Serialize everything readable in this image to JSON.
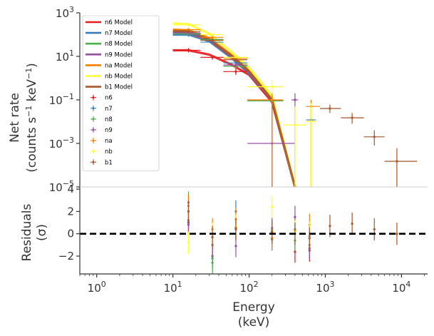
{
  "chart_data": [
    {
      "type": "line",
      "panel": "spectrum",
      "xscale": "log",
      "yscale": "log",
      "xlim": [
        0.6,
        22000
      ],
      "ylim": [
        1e-05,
        1000
      ],
      "ylabel_line1": "Net rate",
      "ylabel_line2": "(counts s",
      "ylabel_line2_sup": "−1",
      "ylabel_line2_mid": " keV",
      "ylabel_line2_sup2": "−1",
      "ylabel_line2_end": ")",
      "yticks": [
        {
          "base": "10",
          "exp": "3",
          "value": 1000
        },
        {
          "base": "10",
          "exp": "1",
          "value": 10
        },
        {
          "base": "10",
          "exp": "−1",
          "value": 0.1
        },
        {
          "base": "10",
          "exp": "−3",
          "value": 0.001
        },
        {
          "base": "10",
          "exp": "−5",
          "value": 1e-05
        }
      ],
      "legend_position": "upper-left",
      "models": [
        {
          "name": "n6 Model",
          "color": "#e41a1c",
          "x": [
            10,
            16,
            30,
            60,
            100,
            200,
            400
          ],
          "y": [
            19,
            19,
            12,
            4,
            1.4,
            0.08,
            1e-05
          ]
        },
        {
          "name": "n7 Model",
          "color": "#377eb8",
          "x": [
            10,
            16,
            30,
            60,
            100,
            200,
            400
          ],
          "y": [
            100,
            100,
            50,
            8,
            1.6,
            0.1,
            1e-05
          ]
        },
        {
          "name": "n8 Model",
          "color": "#4daf4a",
          "x": [
            10,
            16,
            30,
            60,
            100,
            200,
            400
          ],
          "y": [
            120,
            110,
            55,
            9,
            1.8,
            0.1,
            1e-05
          ]
        },
        {
          "name": "n9 Model",
          "color": "#984ea3",
          "x": [
            10,
            16,
            30,
            60,
            100,
            200,
            400
          ],
          "y": [
            120,
            115,
            55,
            9,
            1.8,
            0.1,
            1e-05
          ]
        },
        {
          "name": "na Model",
          "color": "#ff7f00",
          "x": [
            10,
            16,
            30,
            60,
            100,
            200,
            400
          ],
          "y": [
            170,
            160,
            70,
            11,
            2.2,
            0.12,
            1e-05
          ]
        },
        {
          "name": "nb Model",
          "color": "#ffff33",
          "x": [
            10,
            16,
            30,
            60,
            100,
            200,
            400
          ],
          "y": [
            330,
            300,
            110,
            15,
            3,
            0.15,
            1e-05
          ]
        },
        {
          "name": "b1 Model",
          "color": "#a65628",
          "x": [
            10,
            16,
            30,
            60,
            100,
            200,
            400
          ],
          "y": [
            150,
            140,
            60,
            10,
            2,
            0.1,
            1e-05
          ]
        }
      ],
      "data": [
        {
          "name": "n6",
          "color": "#e41a1c",
          "points": [
            {
              "x": 16,
              "xlo": 10,
              "xhi": 23,
              "y": 19,
              "ylo": 15,
              "yhi": 24
            },
            {
              "x": 33,
              "xlo": 23,
              "xhi": 46,
              "y": 9,
              "ylo": 7,
              "yhi": 11
            },
            {
              "x": 67,
              "xlo": 46,
              "xhi": 95,
              "y": 2,
              "ylo": 1.4,
              "yhi": 2.8
            },
            {
              "x": 200,
              "xlo": 95,
              "xhi": 280,
              "y": 0.09,
              "ylo": 1e-05,
              "yhi": 0.15
            }
          ]
        },
        {
          "name": "n7",
          "color": "#377eb8",
          "points": [
            {
              "x": 16,
              "xlo": 10,
              "xhi": 23,
              "y": 95,
              "ylo": 80,
              "yhi": 110
            },
            {
              "x": 33,
              "xlo": 23,
              "xhi": 46,
              "y": 45,
              "ylo": 38,
              "yhi": 52
            },
            {
              "x": 67,
              "xlo": 46,
              "xhi": 95,
              "y": 5,
              "ylo": 4,
              "yhi": 6.5
            },
            {
              "x": 650,
              "xlo": 560,
              "xhi": 750,
              "y": 0.012,
              "ylo": 1e-05,
              "yhi": 0.04
            }
          ]
        },
        {
          "name": "n8",
          "color": "#4daf4a",
          "points": [
            {
              "x": 16,
              "xlo": 10,
              "xhi": 23,
              "y": 110,
              "ylo": 90,
              "yhi": 130
            },
            {
              "x": 33,
              "xlo": 23,
              "xhi": 46,
              "y": 60,
              "ylo": 50,
              "yhi": 70
            },
            {
              "x": 67,
              "xlo": 46,
              "xhi": 95,
              "y": 3.5,
              "ylo": 2.8,
              "yhi": 4.5
            },
            {
              "x": 200,
              "xlo": 95,
              "xhi": 280,
              "y": 0.09,
              "ylo": 1e-05,
              "yhi": 0.15
            }
          ]
        },
        {
          "name": "n9",
          "color": "#984ea3",
          "points": [
            {
              "x": 16,
              "xlo": 10,
              "xhi": 23,
              "y": 120,
              "ylo": 100,
              "yhi": 140
            },
            {
              "x": 33,
              "xlo": 23,
              "xhi": 46,
              "y": 55,
              "ylo": 45,
              "yhi": 65
            },
            {
              "x": 67,
              "xlo": 46,
              "xhi": 95,
              "y": 4,
              "ylo": 3.2,
              "yhi": 5
            },
            {
              "x": 200,
              "xlo": 95,
              "xhi": 400,
              "y": 0.001,
              "ylo": 1e-05,
              "yhi": 0.01
            },
            {
              "x": 400,
              "xlo": 360,
              "xhi": 440,
              "y": 0.1,
              "ylo": 1e-05,
              "yhi": 0.2
            }
          ]
        },
        {
          "name": "na",
          "color": "#ff7f00",
          "points": [
            {
              "x": 16,
              "xlo": 10,
              "xhi": 23,
              "y": 170,
              "ylo": 140,
              "yhi": 200
            },
            {
              "x": 33,
              "xlo": 23,
              "xhi": 46,
              "y": 75,
              "ylo": 62,
              "yhi": 88
            },
            {
              "x": 67,
              "xlo": 46,
              "xhi": 95,
              "y": 8,
              "ylo": 6.5,
              "yhi": 10
            },
            {
              "x": 200,
              "xlo": 95,
              "xhi": 280,
              "y": 0.1,
              "ylo": 1e-05,
              "yhi": 0.2
            },
            {
              "x": 650,
              "xlo": 560,
              "xhi": 850,
              "y": 0.05,
              "ylo": 1e-05,
              "yhi": 0.1
            }
          ]
        },
        {
          "name": "nb",
          "color": "#ffff33",
          "points": [
            {
              "x": 16,
              "xlo": 10,
              "xhi": 23,
              "y": 280,
              "ylo": 240,
              "yhi": 320
            },
            {
              "x": 33,
              "xlo": 23,
              "xhi": 46,
              "y": 100,
              "ylo": 85,
              "yhi": 115
            },
            {
              "x": 67,
              "xlo": 46,
              "xhi": 95,
              "y": 9,
              "ylo": 7.5,
              "yhi": 11
            },
            {
              "x": 200,
              "xlo": 95,
              "xhi": 280,
              "y": 0.4,
              "ylo": 0.2,
              "yhi": 0.8
            },
            {
              "x": 400,
              "xlo": 280,
              "xhi": 560,
              "y": 0.007,
              "ylo": 1e-05,
              "yhi": 0.05
            },
            {
              "x": 650,
              "xlo": 560,
              "xhi": 750,
              "y": 0.01,
              "ylo": 1e-05,
              "yhi": 0.07
            }
          ]
        },
        {
          "name": "b1",
          "color": "#a65628",
          "points": [
            {
              "x": 16,
              "xlo": 10,
              "xhi": 23,
              "y": 140,
              "ylo": 120,
              "yhi": 160
            },
            {
              "x": 33,
              "xlo": 23,
              "xhi": 46,
              "y": 55,
              "ylo": 45,
              "yhi": 65
            },
            {
              "x": 67,
              "xlo": 46,
              "xhi": 95,
              "y": 7,
              "ylo": 5.5,
              "yhi": 8.5
            },
            {
              "x": 1150,
              "xlo": 850,
              "xhi": 1600,
              "y": 0.04,
              "ylo": 0.025,
              "yhi": 0.06
            },
            {
              "x": 2250,
              "xlo": 1600,
              "xhi": 3200,
              "y": 0.015,
              "ylo": 0.008,
              "yhi": 0.025
            },
            {
              "x": 4400,
              "xlo": 3200,
              "xhi": 6000,
              "y": 0.002,
              "ylo": 0.0008,
              "yhi": 0.004
            },
            {
              "x": 8700,
              "xlo": 6000,
              "xhi": 16000,
              "y": 0.00015,
              "ylo": 1e-05,
              "yhi": 0.0006
            }
          ]
        }
      ]
    },
    {
      "type": "scatter",
      "panel": "residuals",
      "xscale": "log",
      "xlim": [
        0.6,
        22000
      ],
      "ylim": [
        -3.6,
        4.2
      ],
      "ylabel_line1": "Residuals",
      "ylabel_line2": "(σ)",
      "xlabel_line1": "Energy",
      "xlabel_line2": "(keV)",
      "yticks": [
        {
          "label": "4",
          "value": 4
        },
        {
          "label": "2",
          "value": 2
        },
        {
          "label": "0",
          "value": 0
        },
        {
          "label": "−2",
          "value": -2
        }
      ],
      "xticks": [
        {
          "base": "10",
          "exp": "0",
          "value": 1
        },
        {
          "base": "10",
          "exp": "1",
          "value": 10
        },
        {
          "base": "10",
          "exp": "2",
          "value": 100
        },
        {
          "base": "10",
          "exp": "3",
          "value": 1000
        },
        {
          "base": "10",
          "exp": "4",
          "value": 10000
        }
      ],
      "reference_line": {
        "y": 0,
        "style": "dashed",
        "color": "#000000"
      },
      "series": [
        {
          "name": "n6",
          "color": "#e41a1c",
          "points": [
            {
              "x": 16,
              "y": 1.0
            },
            {
              "x": 33,
              "y": -2.0
            },
            {
              "x": 67,
              "y": 0.5
            },
            {
              "x": 200,
              "y": 0.2
            },
            {
              "x": 400,
              "y": -1.6
            },
            {
              "x": 620,
              "y": -1.5
            }
          ]
        },
        {
          "name": "n7",
          "color": "#377eb8",
          "points": [
            {
              "x": 16,
              "y": 1.2
            },
            {
              "x": 33,
              "y": -2.2
            },
            {
              "x": 67,
              "y": 2.0
            },
            {
              "x": 200,
              "y": -0.5
            },
            {
              "x": 400,
              "y": 0.4
            },
            {
              "x": 620,
              "y": -0.2
            }
          ]
        },
        {
          "name": "n8",
          "color": "#4daf4a",
          "points": [
            {
              "x": 16,
              "y": 2.8
            },
            {
              "x": 33,
              "y": -2.6
            },
            {
              "x": 67,
              "y": 0.6
            },
            {
              "x": 200,
              "y": 0.3
            },
            {
              "x": 400,
              "y": -0.6
            },
            {
              "x": 620,
              "y": -1.0
            }
          ]
        },
        {
          "name": "n9",
          "color": "#984ea3",
          "points": [
            {
              "x": 16,
              "y": 0.8
            },
            {
              "x": 33,
              "y": -1.0
            },
            {
              "x": 67,
              "y": -1.1
            },
            {
              "x": 200,
              "y": 0.5
            },
            {
              "x": 400,
              "y": 1.5
            },
            {
              "x": 620,
              "y": -1.3
            }
          ]
        },
        {
          "name": "na",
          "color": "#ff7f00",
          "points": [
            {
              "x": 16,
              "y": 2.5
            },
            {
              "x": 33,
              "y": 0.4
            },
            {
              "x": 67,
              "y": 1.3
            },
            {
              "x": 200,
              "y": -0.4
            },
            {
              "x": 400,
              "y": 0.3
            },
            {
              "x": 620,
              "y": 0.8
            }
          ]
        },
        {
          "name": "nb",
          "color": "#ffff33",
          "points": [
            {
              "x": 16,
              "y": -0.8
            },
            {
              "x": 33,
              "y": 0.0
            },
            {
              "x": 67,
              "y": 0.7
            },
            {
              "x": 200,
              "y": 2.4
            },
            {
              "x": 400,
              "y": 0.2
            },
            {
              "x": 620,
              "y": 0.1
            }
          ]
        },
        {
          "name": "b1",
          "color": "#a65628",
          "points": [
            {
              "x": 16,
              "y": 2.0
            },
            {
              "x": 33,
              "y": -0.3
            },
            {
              "x": 67,
              "y": 0.4
            },
            {
              "x": 200,
              "y": 0.1
            },
            {
              "x": 400,
              "y": 0.0
            },
            {
              "x": 620,
              "y": -0.4
            },
            {
              "x": 1150,
              "y": 0.7
            },
            {
              "x": 2250,
              "y": 0.9
            },
            {
              "x": 4400,
              "y": 0.4
            },
            {
              "x": 8700,
              "y": 0.0
            }
          ]
        }
      ]
    }
  ]
}
